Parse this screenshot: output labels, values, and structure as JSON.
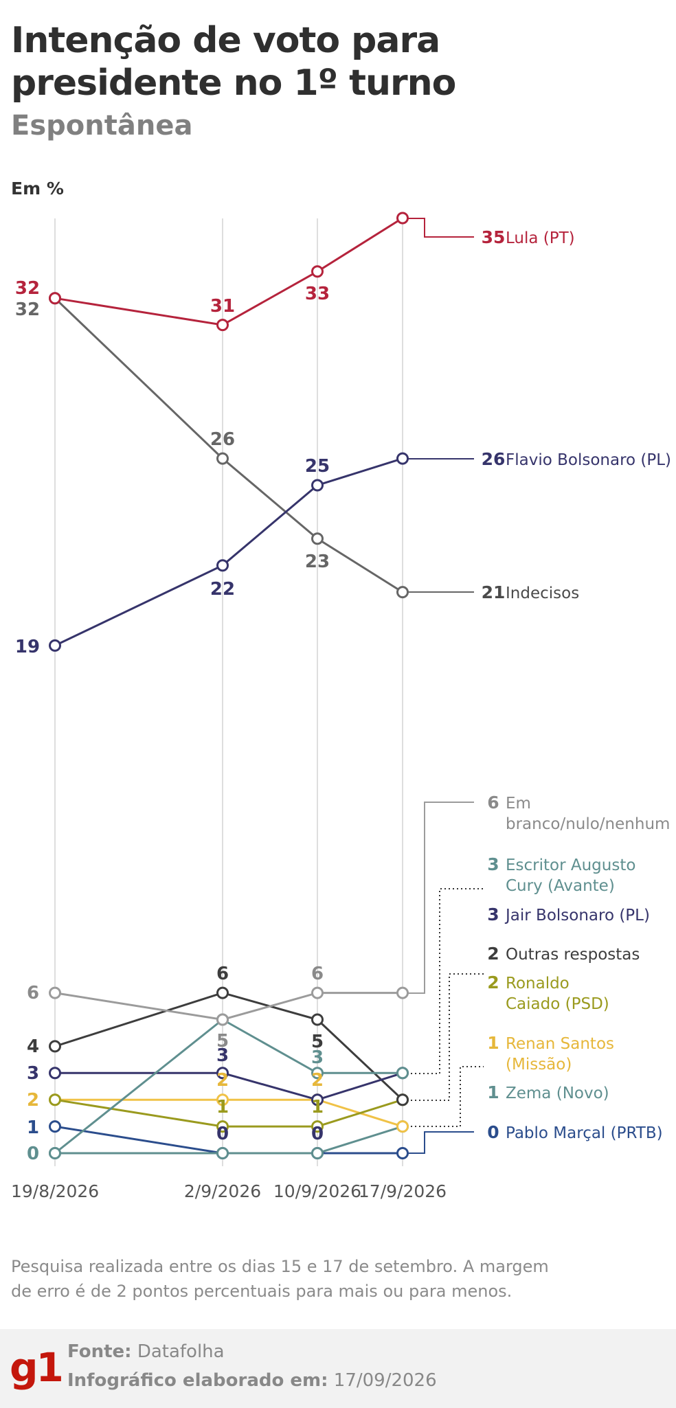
{
  "header": {
    "title": "Intenção de voto para presidente no 1º turno",
    "subtitle": "Espontânea",
    "unit": "Em %"
  },
  "chart_data": {
    "type": "line",
    "x": [
      "19/8/2026",
      "2/9/2026",
      "10/9/2026",
      "17/9/2026"
    ],
    "series": [
      {
        "name": "Lula (PT)",
        "values": [
          32,
          31,
          33,
          35
        ],
        "color": "#b5233c"
      },
      {
        "name": "Flavio Bolsonaro (PL)",
        "values": [
          19,
          22,
          25,
          26
        ],
        "color": "#36346b"
      },
      {
        "name": "Indecisos",
        "values": [
          32,
          26,
          23,
          21
        ],
        "color": "#666666"
      },
      {
        "name": "Em branco/nulo/nenhum",
        "values": [
          6,
          5,
          6,
          6
        ],
        "color": "#9b9b9b"
      },
      {
        "name": "Escritor Augusto Cury (Avante)",
        "values": [
          0,
          5,
          3,
          3
        ],
        "color": "#5f8f8f"
      },
      {
        "name": "Jair Bolsonaro (PL)",
        "values": [
          3,
          3,
          2,
          3
        ],
        "color": "#36346b"
      },
      {
        "name": "Outras respostas",
        "values": [
          4,
          6,
          5,
          2
        ],
        "color": "#3d3d3d"
      },
      {
        "name": "Ronaldo Caiado (PSD)",
        "values": [
          2,
          1,
          1,
          2
        ],
        "color": "#9a9a1e"
      },
      {
        "name": "Renan Santos (Missão)",
        "values": [
          2,
          2,
          2,
          1
        ],
        "color": "#f0c247"
      },
      {
        "name": "Zema (Novo)",
        "values": [
          0,
          0,
          0,
          1
        ],
        "color": "#5f8f8f"
      },
      {
        "name": "Pablo Marçal (PRTB)",
        "values": [
          1,
          0,
          0,
          0
        ],
        "color": "#2b4d8c"
      }
    ],
    "legend": [
      {
        "value": "35",
        "name": "Lula (PT)",
        "color": "#b5233c"
      },
      {
        "value": "26",
        "name": "Flavio Bolsonaro (PL)",
        "color": "#36346b"
      },
      {
        "value": "21",
        "name": "Indecisos",
        "color": "#4a4a4a"
      },
      {
        "value": "6",
        "name": "Em",
        "name2": "branco/nulo/nenhum",
        "color": "#8a8a8a"
      },
      {
        "value": "3",
        "name": "Escritor Augusto",
        "name2": "Cury (Avante)",
        "color": "#5f8f8f"
      },
      {
        "value": "3",
        "name": "Jair Bolsonaro (PL)",
        "color": "#36346b"
      },
      {
        "value": "2",
        "name": "Outras respostas",
        "color": "#3d3d3d"
      },
      {
        "value": "2",
        "name": "Ronaldo",
        "name2": "Caiado (PSD)",
        "color": "#9a9a1e"
      },
      {
        "value": "1",
        "name": "Renan Santos",
        "name2": "(Missão)",
        "color": "#e6b73a"
      },
      {
        "value": "1",
        "name": "Zema (Novo)",
        "color": "#5f8f8f"
      },
      {
        "value": "0",
        "name": "Pablo Marçal (PRTB)",
        "color": "#2b4d8c"
      }
    ],
    "point_labels": [
      {
        "series": "Lula (PT)",
        "value": "32",
        "color": "#b5233c"
      },
      {
        "series": "Lula (PT)",
        "value": "31",
        "color": "#b5233c"
      },
      {
        "series": "Lula (PT)",
        "value": "33",
        "color": "#b5233c"
      },
      {
        "series": "Indecisos",
        "value": "32",
        "color": "#666666"
      },
      {
        "series": "Indecisos",
        "value": "26",
        "color": "#666666"
      },
      {
        "series": "Indecisos",
        "value": "23",
        "color": "#666666"
      },
      {
        "series": "Flavio Bolsonaro (PL)",
        "value": "19",
        "color": "#36346b"
      },
      {
        "series": "Flavio Bolsonaro (PL)",
        "value": "22",
        "color": "#36346b"
      },
      {
        "series": "Flavio Bolsonaro (PL)",
        "value": "25",
        "color": "#36346b"
      },
      {
        "series": "Em branco/nulo/nenhum",
        "value": "6",
        "color": "#8a8a8a"
      },
      {
        "series": "Em branco/nulo/nenhum",
        "value": "5",
        "color": "#8a8a8a"
      },
      {
        "series": "Em branco/nulo/nenhum",
        "value": "6",
        "color": "#8a8a8a"
      },
      {
        "series": "Outras respostas",
        "value": "4",
        "color": "#3d3d3d"
      },
      {
        "series": "Outras respostas",
        "value": "6",
        "color": "#3d3d3d"
      },
      {
        "series": "Outras respostas",
        "value": "5",
        "color": "#3d3d3d"
      },
      {
        "series": "Jair Bolsonaro (PL)",
        "value": "3",
        "color": "#36346b"
      },
      {
        "series": "Jair Bolsonaro (PL)",
        "value": "3",
        "color": "#36346b"
      },
      {
        "series": "Escritor Augusto Cury (Avante)",
        "value": "0",
        "color": "#5f8f8f"
      },
      {
        "series": "Escritor Augusto Cury (Avante)",
        "value": "3",
        "color": "#5f8f8f"
      },
      {
        "series": "Ronaldo Caiado (PSD)",
        "value": "2",
        "color": "#e6b73a"
      },
      {
        "series": "Renan Santos (Missão)",
        "value": "2",
        "color": "#e6b73a"
      },
      {
        "series": "Renan Santos (Missão)",
        "value": "2",
        "color": "#e6b73a"
      },
      {
        "series": "Ronaldo Caiado (PSD)",
        "value": "1",
        "color": "#9a9a1e"
      },
      {
        "series": "Ronaldo Caiado (PSD)",
        "value": "1",
        "color": "#9a9a1e"
      },
      {
        "series": "Pablo Marçal (PRTB)",
        "value": "1",
        "color": "#2b4d8c"
      },
      {
        "series": "Pablo Marçal (PRTB)",
        "value": "0",
        "color": "#36346b"
      },
      {
        "series": "Pablo Marçal (PRTB)",
        "value": "0",
        "color": "#36346b"
      }
    ],
    "ylim": [
      0,
      35
    ],
    "grid": "vertical lines at each date"
  },
  "note": "Pesquisa realizada entre os dias 15 e 17 de setembro. A margem de erro é de 2 pontos percentuais para mais ou para menos.",
  "footer": {
    "logo": "g1",
    "source_label": "Fonte:",
    "source_value": "Datafolha",
    "made_label": "Infográfico elaborado em:",
    "made_value": "17/09/2026"
  }
}
